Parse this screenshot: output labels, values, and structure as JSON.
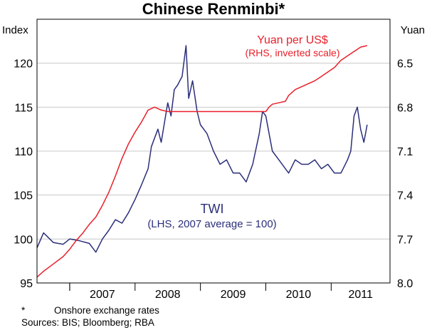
{
  "chart_data": {
    "type": "line",
    "title": "Chinese Renminbi*",
    "left_axis": {
      "label": "Index",
      "ylim": [
        95,
        125
      ],
      "ticks": [
        95,
        100,
        105,
        110,
        115,
        120
      ]
    },
    "right_axis": {
      "label": "Yuan",
      "ylim": [
        8.0,
        6.2
      ],
      "inverted": true,
      "ticks": [
        "6.5",
        "6.8",
        "7.1",
        "7.4",
        "7.7",
        "8.0"
      ]
    },
    "x_categories": [
      "2007",
      "2008",
      "2009",
      "2010",
      "2011"
    ],
    "xlim": [
      2006.5,
      2011.9
    ],
    "grid": true,
    "series": [
      {
        "name": "TWI",
        "axis": "left",
        "color": "#2b2f7a",
        "points": [
          [
            2006.5,
            99.0
          ],
          [
            2006.6,
            100.7
          ],
          [
            2006.75,
            99.6
          ],
          [
            2006.9,
            99.4
          ],
          [
            2007.0,
            100.0
          ],
          [
            2007.15,
            99.8
          ],
          [
            2007.3,
            99.5
          ],
          [
            2007.4,
            98.5
          ],
          [
            2007.5,
            100.0
          ],
          [
            2007.6,
            101.0
          ],
          [
            2007.7,
            102.2
          ],
          [
            2007.8,
            101.8
          ],
          [
            2007.9,
            103.0
          ],
          [
            2008.0,
            104.5
          ],
          [
            2008.1,
            106.2
          ],
          [
            2008.2,
            108.0
          ],
          [
            2008.25,
            110.5
          ],
          [
            2008.35,
            112.5
          ],
          [
            2008.4,
            111.0
          ],
          [
            2008.5,
            115.5
          ],
          [
            2008.55,
            114.0
          ],
          [
            2008.6,
            117.0
          ],
          [
            2008.65,
            117.5
          ],
          [
            2008.72,
            118.5
          ],
          [
            2008.78,
            122.0
          ],
          [
            2008.82,
            116.0
          ],
          [
            2008.88,
            118.0
          ],
          [
            2008.95,
            114.5
          ],
          [
            2009.0,
            113.0
          ],
          [
            2009.1,
            112.0
          ],
          [
            2009.2,
            110.0
          ],
          [
            2009.3,
            108.5
          ],
          [
            2009.4,
            109.0
          ],
          [
            2009.5,
            107.5
          ],
          [
            2009.6,
            107.5
          ],
          [
            2009.7,
            106.5
          ],
          [
            2009.8,
            108.5
          ],
          [
            2009.9,
            112.0
          ],
          [
            2009.95,
            114.5
          ],
          [
            2010.0,
            114.0
          ],
          [
            2010.05,
            112.0
          ],
          [
            2010.1,
            110.0
          ],
          [
            2010.2,
            109.0
          ],
          [
            2010.3,
            108.0
          ],
          [
            2010.35,
            107.5
          ],
          [
            2010.45,
            109.0
          ],
          [
            2010.55,
            108.5
          ],
          [
            2010.65,
            108.5
          ],
          [
            2010.75,
            109.0
          ],
          [
            2010.85,
            108.0
          ],
          [
            2010.95,
            108.5
          ],
          [
            2011.05,
            107.5
          ],
          [
            2011.15,
            107.5
          ],
          [
            2011.25,
            109.0
          ],
          [
            2011.3,
            110.0
          ],
          [
            2011.35,
            114.0
          ],
          [
            2011.4,
            115.0
          ],
          [
            2011.45,
            112.5
          ],
          [
            2011.5,
            111.0
          ],
          [
            2011.55,
            113.0
          ]
        ]
      },
      {
        "name": "Yuan per US$",
        "axis": "right",
        "color": "#e8202a",
        "points": [
          [
            2006.5,
            7.96
          ],
          [
            2006.6,
            7.92
          ],
          [
            2006.75,
            7.87
          ],
          [
            2006.9,
            7.82
          ],
          [
            2007.0,
            7.77
          ],
          [
            2007.1,
            7.71
          ],
          [
            2007.2,
            7.66
          ],
          [
            2007.3,
            7.6
          ],
          [
            2007.4,
            7.55
          ],
          [
            2007.5,
            7.47
          ],
          [
            2007.6,
            7.38
          ],
          [
            2007.7,
            7.27
          ],
          [
            2007.8,
            7.15
          ],
          [
            2007.9,
            7.05
          ],
          [
            2008.0,
            6.97
          ],
          [
            2008.1,
            6.9
          ],
          [
            2008.2,
            6.82
          ],
          [
            2008.3,
            6.8
          ],
          [
            2008.4,
            6.82
          ],
          [
            2008.5,
            6.83
          ],
          [
            2008.6,
            6.83
          ],
          [
            2008.8,
            6.83
          ],
          [
            2009.0,
            6.83
          ],
          [
            2009.2,
            6.83
          ],
          [
            2009.4,
            6.83
          ],
          [
            2009.6,
            6.83
          ],
          [
            2009.8,
            6.83
          ],
          [
            2010.0,
            6.83
          ],
          [
            2010.05,
            6.8
          ],
          [
            2010.1,
            6.78
          ],
          [
            2010.2,
            6.77
          ],
          [
            2010.3,
            6.76
          ],
          [
            2010.35,
            6.72
          ],
          [
            2010.45,
            6.68
          ],
          [
            2010.55,
            6.66
          ],
          [
            2010.65,
            6.64
          ],
          [
            2010.75,
            6.62
          ],
          [
            2010.85,
            6.59
          ],
          [
            2010.95,
            6.56
          ],
          [
            2011.05,
            6.53
          ],
          [
            2011.15,
            6.48
          ],
          [
            2011.25,
            6.45
          ],
          [
            2011.35,
            6.42
          ],
          [
            2011.45,
            6.39
          ],
          [
            2011.55,
            6.38
          ]
        ]
      }
    ],
    "annotations": {
      "red_line1": "Yuan per US$",
      "red_line2": "(RHS, inverted scale)",
      "blue_line1": "TWI",
      "blue_line2": "(LHS, 2007 average = 100)"
    },
    "footnote_star": "*",
    "footnote": "Onshore exchange rates",
    "sources": "Sources: BIS; Bloomberg; RBA"
  }
}
